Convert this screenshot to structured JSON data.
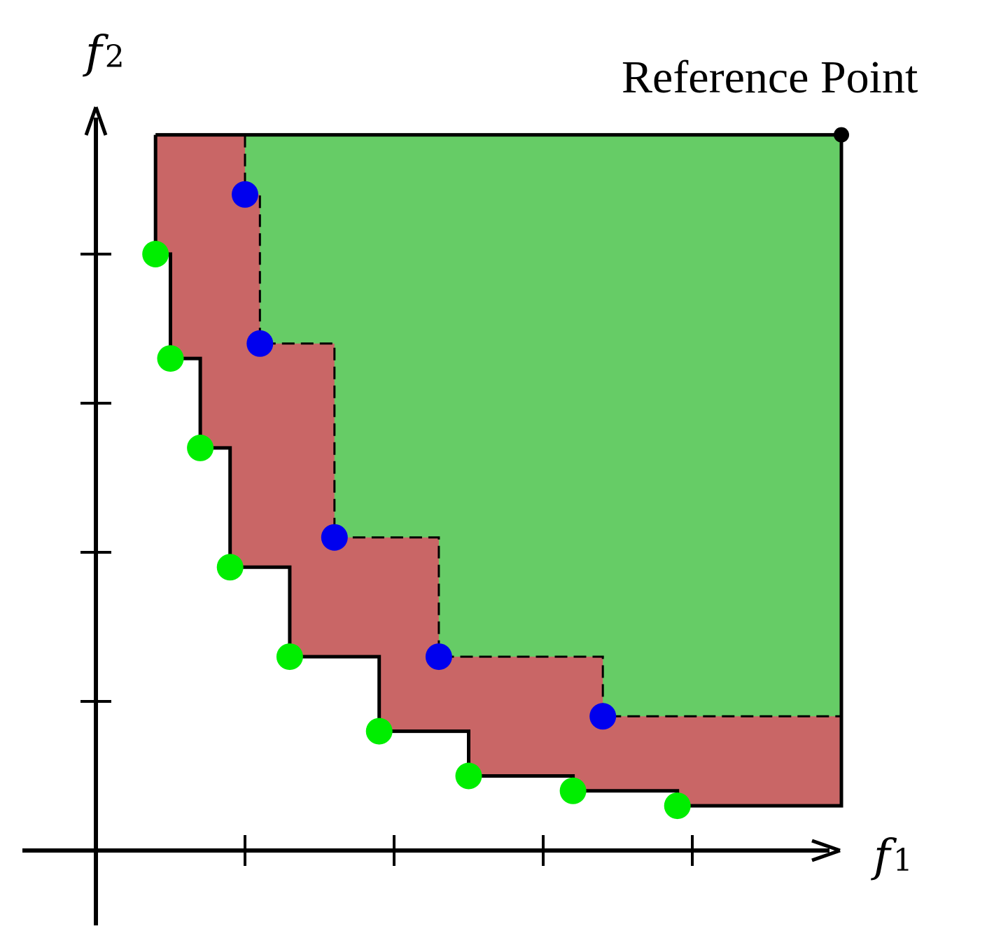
{
  "labels": {
    "x_axis_symbol": "f",
    "x_axis_subscript": "1",
    "y_axis_symbol": "f",
    "y_axis_subscript": "2",
    "reference_point": "Reference Point"
  },
  "colors": {
    "dominated_region_a": "#c96666",
    "dominated_region_b": "#66cc66",
    "front_a_points": "#00ee00",
    "front_b_points": "#0000ee",
    "axes": "#000000",
    "reference_point": "#000000"
  },
  "diagram": {
    "reference_point": [
      10.0,
      9.6
    ],
    "x_axis_ticks": [
      2,
      4,
      6,
      8
    ],
    "y_axis_ticks": [
      2,
      4,
      6,
      8
    ],
    "front_a": [
      [
        0.8,
        8.0
      ],
      [
        1.0,
        6.6
      ],
      [
        1.4,
        5.4
      ],
      [
        1.8,
        3.8
      ],
      [
        2.6,
        2.6
      ],
      [
        3.8,
        1.6
      ],
      [
        5.0,
        1.0
      ],
      [
        6.4,
        0.8
      ],
      [
        7.8,
        0.6
      ]
    ],
    "front_b": [
      [
        2.0,
        8.8
      ],
      [
        2.2,
        6.8
      ],
      [
        3.2,
        4.2
      ],
      [
        4.6,
        2.6
      ],
      [
        6.8,
        1.8
      ]
    ]
  }
}
